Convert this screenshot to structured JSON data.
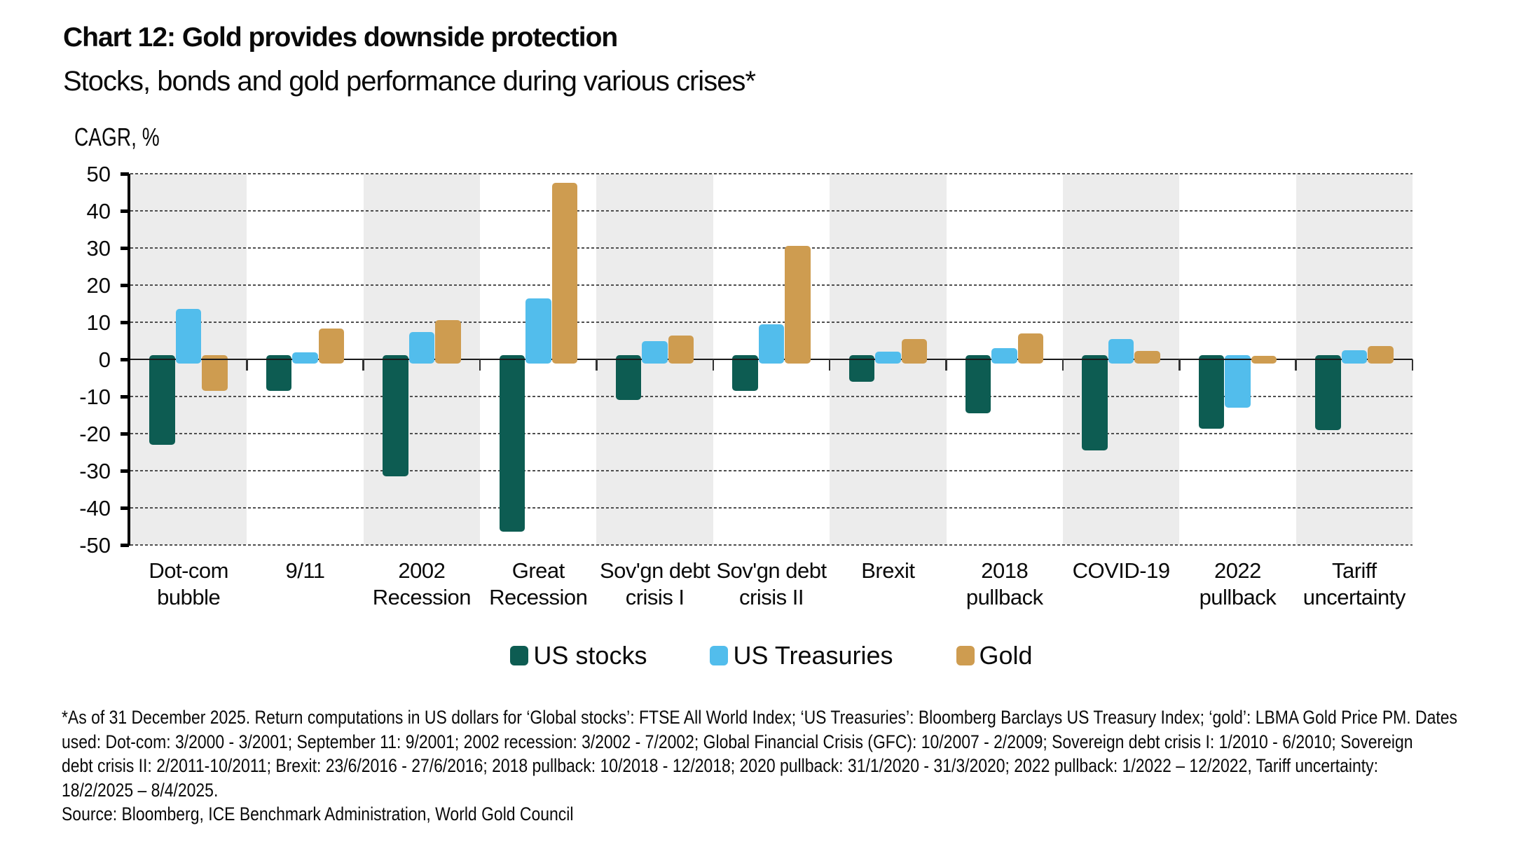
{
  "title": "Chart 12: Gold provides downside protection",
  "subtitle": "Stocks, bonds and gold performance during various crises*",
  "axis_title": "CAGR, %",
  "chart_data": {
    "type": "bar",
    "categories": [
      [
        "Dot-com",
        "bubble"
      ],
      [
        "9/11"
      ],
      [
        "2002",
        "Recession"
      ],
      [
        "Great",
        "Recession"
      ],
      [
        "Sov'gn debt",
        "crisis I"
      ],
      [
        "Sov'gn debt",
        "crisis II"
      ],
      [
        "Brexit"
      ],
      [
        "2018",
        "pullback"
      ],
      [
        "COVID-19"
      ],
      [
        "2022",
        "pullback"
      ],
      [
        "Tariff",
        "uncertainty"
      ]
    ],
    "series": [
      {
        "name": "US stocks",
        "color": "#0D5C52",
        "values": [
          -23.0,
          -8.5,
          -31.5,
          -46.5,
          -11.0,
          -8.5,
          -6.0,
          -14.5,
          -24.5,
          -18.7,
          -19.0
        ]
      },
      {
        "name": "US Treasuries",
        "color": "#52BDEC",
        "values": [
          13.5,
          1.8,
          7.3,
          16.5,
          5.0,
          9.5,
          2.0,
          3.0,
          5.5,
          -13.0,
          2.5
        ]
      },
      {
        "name": "Gold",
        "color": "#CE9C50",
        "values": [
          -8.5,
          8.3,
          10.5,
          47.5,
          6.5,
          30.5,
          5.5,
          7.0,
          2.3,
          1.0,
          3.6
        ]
      }
    ],
    "ylabel": "CAGR, %",
    "ylim": [
      -50,
      50
    ],
    "yticks": [
      50,
      40,
      30,
      20,
      10,
      0,
      -10,
      -20,
      -30,
      -40,
      -50
    ],
    "grid": "dotted horizontal, solid zero line",
    "legend_position": "bottom center",
    "band_color": "#ECECEC",
    "banded_categories": [
      0,
      2,
      4,
      6,
      8,
      10
    ]
  },
  "footnote": {
    "lines": [
      "*As of 31 December 2025. Return computations in US dollars for ‘Global stocks’: FTSE All World Index; ‘US Treasuries’: Bloomberg Barclays US Treasury Index; ‘gold’: LBMA Gold Price PM. Dates",
      "used: Dot-com: 3/2000 - 3/2001; September 11: 9/2001; 2002 recession: 3/2002 - 7/2002; Global Financial Crisis (GFC): 10/2007 - 2/2009; Sovereign debt crisis I: 1/2010 - 6/2010; Sovereign",
      "debt crisis II: 2/2011-10/2011; Brexit: 23/6/2016 - 27/6/2016; 2018 pullback: 10/2018 - 12/2018; 2020 pullback: 31/1/2020 - 31/3/2020; 2022 pullback: 1/2022 – 12/2022, Tariff uncertainty:",
      "18/2/2025 – 8/4/2025."
    ],
    "source": "Source: Bloomberg, ICE Benchmark Administration, World Gold Council"
  }
}
